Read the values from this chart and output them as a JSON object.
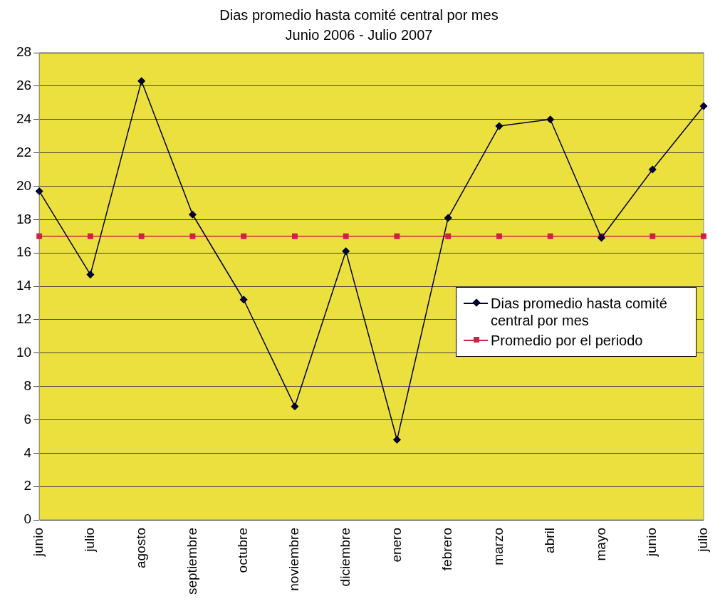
{
  "chart_data": {
    "type": "line",
    "title": "Dias promedio hasta comité central por mes",
    "subtitle": "Junio 2006 - Julio 2007",
    "categories": [
      "junio",
      "julio",
      "agosto",
      "septiembre",
      "octubre",
      "noviembre",
      "diciembre",
      "enero",
      "febrero",
      "marzo",
      "abril",
      "mayo",
      "junio",
      "julio"
    ],
    "series": [
      {
        "name": "Dias promedio hasta comité central por mes",
        "color": "#000033",
        "marker": "diamond",
        "values": [
          19.7,
          14.7,
          26.3,
          18.3,
          13.2,
          6.8,
          16.1,
          4.8,
          18.1,
          23.6,
          24.0,
          16.9,
          21.0,
          24.8
        ]
      },
      {
        "name": "Promedio por el periodo",
        "color": "#cc2244",
        "marker": "square",
        "values": [
          17,
          17,
          17,
          17,
          17,
          17,
          17,
          17,
          17,
          17,
          17,
          17,
          17,
          17
        ]
      }
    ],
    "ylim": [
      0,
      28
    ],
    "yticks": [
      0,
      2,
      4,
      6,
      8,
      10,
      12,
      14,
      16,
      18,
      20,
      22,
      24,
      26,
      28
    ],
    "grid": "y",
    "legend": "right",
    "line_style": "solid"
  }
}
